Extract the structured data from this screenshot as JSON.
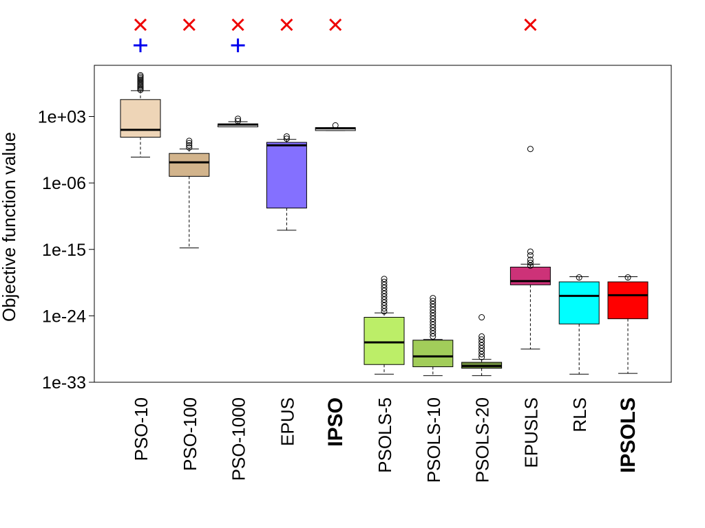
{
  "chart_data": {
    "type": "boxplot",
    "ylabel": "Objective function value",
    "yscale": "log10",
    "ylim_log10": [
      -33.2,
      9
    ],
    "yticks": [
      {
        "log10": 3,
        "label": "1e+03"
      },
      {
        "log10": -6,
        "label": "1e-06"
      },
      {
        "log10": -15,
        "label": "1e-15"
      },
      {
        "log10": -24,
        "label": "1e-24"
      },
      {
        "log10": -33,
        "label": "1e-33"
      }
    ],
    "categories": [
      {
        "label": "PSO-10",
        "bold": false,
        "color": "#EED5B7",
        "whisker_low": -2.5,
        "q1": 0.2,
        "median": 1.2,
        "q3": 5.3,
        "whisker_high": 6.5,
        "outliers": [
          6.6,
          6.8,
          7.0,
          7.2,
          7.4,
          7.6,
          7.8,
          8.0,
          8.2,
          8.4,
          8.6
        ],
        "marks": [
          "x",
          "+"
        ]
      },
      {
        "label": "PSO-100",
        "bold": false,
        "color": "#D2B48C",
        "whisker_low": -14.8,
        "q1": -5.1,
        "median": -3.2,
        "q3": -2.0,
        "whisker_high": -1.4,
        "outliers": [
          -1.2,
          -0.9,
          -0.6,
          -0.3
        ],
        "marks": [
          "x"
        ]
      },
      {
        "label": "PSO-1000",
        "bold": false,
        "color": "#FFFFFF",
        "whisker_low": 1.6,
        "q1": 1.6,
        "median": 1.9,
        "q3": 2.0,
        "whisker_high": 2.3,
        "outliers": [
          2.4,
          2.7
        ],
        "marks": [
          "x",
          "+"
        ]
      },
      {
        "label": "EPUS",
        "bold": false,
        "color": "#8470FF",
        "whisker_low": -12.4,
        "q1": -9.4,
        "median": -0.9,
        "q3": -0.5,
        "whisker_high": -0.1,
        "outliers": [
          0.0,
          0.3
        ],
        "marks": [
          "x"
        ]
      },
      {
        "label": "IPSO",
        "bold": true,
        "color": "#FFFFFF",
        "whisker_low": 1.1,
        "q1": 1.1,
        "median": 1.4,
        "q3": 1.5,
        "whisker_high": 1.5,
        "outliers": [
          1.8
        ],
        "marks": [
          "x"
        ]
      },
      {
        "label": "PSOLS-5",
        "bold": false,
        "color": "#BCEE68",
        "whisker_low": -31.9,
        "q1": -30.6,
        "median": -27.6,
        "q3": -24.2,
        "whisker_high": -23.6,
        "outliers": [
          -23.4,
          -23.0,
          -22.6,
          -22.2,
          -21.8,
          -21.4,
          -21.0,
          -20.6,
          -20.2,
          -19.8,
          -19.4,
          -19.0
        ],
        "marks": []
      },
      {
        "label": "PSOLS-10",
        "bold": false,
        "color": "#A2CD5A",
        "whisker_low": -32.1,
        "q1": -30.9,
        "median": -29.5,
        "q3": -27.3,
        "whisker_high": -27.2,
        "outliers": [
          -26.8,
          -26.4,
          -26.0,
          -25.6,
          -25.2,
          -24.8,
          -24.4,
          -24.0,
          -23.6,
          -23.2,
          -22.8,
          -22.4,
          -22.0,
          -21.6
        ],
        "marks": []
      },
      {
        "label": "PSOLS-20",
        "bold": false,
        "color": "#6E8B3D",
        "whisker_low": -32.1,
        "q1": -31.1,
        "median": -30.8,
        "q3": -30.3,
        "whisker_high": -29.9,
        "outliers": [
          -29.6,
          -29.2,
          -28.8,
          -28.4,
          -28.0,
          -27.6,
          -27.2,
          -26.8,
          -24.2
        ],
        "marks": []
      },
      {
        "label": "EPUSLS",
        "bold": false,
        "color": "#CD3278",
        "whisker_low": -28.5,
        "q1": -19.8,
        "median": -19.3,
        "q3": -17.4,
        "whisker_high": -17.0,
        "outliers": [
          -17.2,
          -16.8,
          -16.4,
          -15.8,
          -15.3,
          -1.4
        ],
        "marks": [
          "x"
        ]
      },
      {
        "label": "RLS",
        "bold": false,
        "color": "#00FFFF",
        "whisker_low": -31.9,
        "q1": -25.1,
        "median": -21.3,
        "q3": -19.4,
        "whisker_high": -18.7,
        "outliers": [
          -18.8
        ],
        "marks": []
      },
      {
        "label": "IPSOLS",
        "bold": true,
        "color": "#FF0000",
        "whisker_low": -31.8,
        "q1": -24.4,
        "median": -21.2,
        "q3": -19.4,
        "whisker_high": -18.7,
        "outliers": [
          -18.8
        ],
        "marks": []
      }
    ],
    "mark_colors": {
      "x": "#EE0000",
      "+": "#0000EE"
    }
  }
}
